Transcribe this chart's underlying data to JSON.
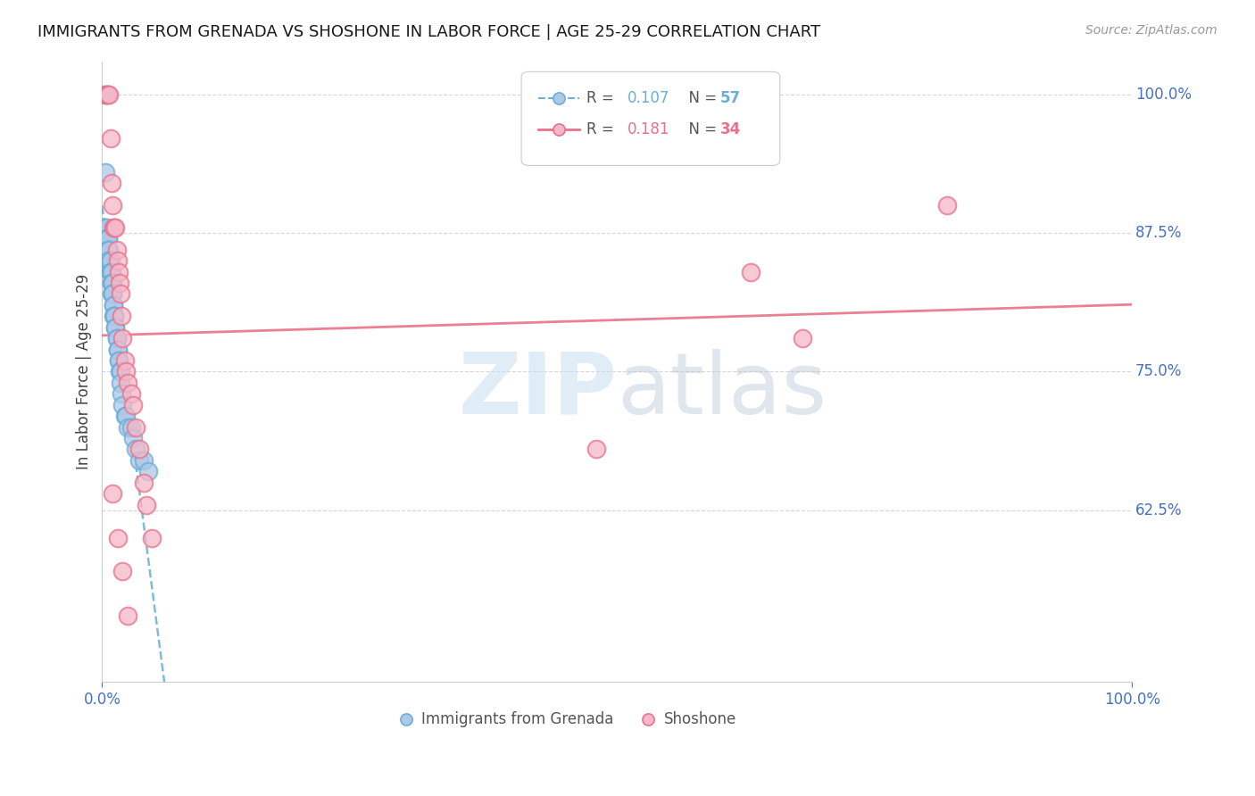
{
  "title": "IMMIGRANTS FROM GRENADA VS SHOSHONE IN LABOR FORCE | AGE 25-29 CORRELATION CHART",
  "source_text": "Source: ZipAtlas.com",
  "ylabel": "In Labor Force | Age 25-29",
  "xmin": 0.0,
  "xmax": 1.0,
  "ymin": 0.0,
  "ymax": 1.0,
  "ytick_values": [
    0.625,
    0.75,
    0.875,
    1.0
  ],
  "ytick_labels": [
    "62.5%",
    "75.0%",
    "87.5%",
    "100.0%"
  ],
  "xtick_labels": [
    "0.0%",
    "100.0%"
  ],
  "grenada_R": 0.107,
  "grenada_N": 57,
  "shoshone_R": 0.181,
  "shoshone_N": 34,
  "grenada_color": "#6baed6",
  "grenada_fill": "#aec8e8",
  "shoshone_color": "#e8728a",
  "shoshone_fill": "#f5b8c8",
  "grenada_x": [
    0.002,
    0.003,
    0.003,
    0.004,
    0.004,
    0.005,
    0.005,
    0.005,
    0.006,
    0.006,
    0.006,
    0.006,
    0.007,
    0.007,
    0.007,
    0.007,
    0.008,
    0.008,
    0.008,
    0.008,
    0.009,
    0.009,
    0.009,
    0.009,
    0.009,
    0.01,
    0.01,
    0.01,
    0.01,
    0.011,
    0.011,
    0.011,
    0.012,
    0.012,
    0.012,
    0.013,
    0.013,
    0.014,
    0.014,
    0.015,
    0.015,
    0.016,
    0.016,
    0.017,
    0.018,
    0.018,
    0.019,
    0.02,
    0.022,
    0.023,
    0.025,
    0.028,
    0.03,
    0.033,
    0.036,
    0.04,
    0.045
  ],
  "grenada_y": [
    1.0,
    0.93,
    0.88,
    1.0,
    0.88,
    0.87,
    0.87,
    0.86,
    0.87,
    0.87,
    0.86,
    0.86,
    0.86,
    0.85,
    0.85,
    0.85,
    0.85,
    0.84,
    0.84,
    0.84,
    0.84,
    0.83,
    0.83,
    0.83,
    0.82,
    0.83,
    0.82,
    0.82,
    0.82,
    0.81,
    0.81,
    0.8,
    0.8,
    0.8,
    0.8,
    0.79,
    0.79,
    0.78,
    0.78,
    0.77,
    0.77,
    0.76,
    0.76,
    0.75,
    0.75,
    0.74,
    0.73,
    0.72,
    0.71,
    0.71,
    0.7,
    0.7,
    0.69,
    0.68,
    0.67,
    0.67,
    0.66
  ],
  "shoshone_x": [
    0.004,
    0.006,
    0.007,
    0.008,
    0.009,
    0.01,
    0.011,
    0.012,
    0.013,
    0.014,
    0.015,
    0.016,
    0.017,
    0.018,
    0.019,
    0.02,
    0.022,
    0.023,
    0.025,
    0.028,
    0.03,
    0.033,
    0.036,
    0.04,
    0.043,
    0.048,
    0.48,
    0.63,
    0.68,
    0.82,
    0.01,
    0.015,
    0.02,
    0.025
  ],
  "shoshone_y": [
    1.0,
    1.0,
    1.0,
    0.96,
    0.92,
    0.9,
    0.88,
    0.88,
    0.88,
    0.86,
    0.85,
    0.84,
    0.83,
    0.82,
    0.8,
    0.78,
    0.76,
    0.75,
    0.74,
    0.73,
    0.72,
    0.7,
    0.68,
    0.65,
    0.63,
    0.6,
    0.68,
    0.84,
    0.78,
    0.9,
    0.64,
    0.6,
    0.57,
    0.53
  ],
  "watermark_zip": "ZIP",
  "watermark_atlas": "atlas",
  "background_color": "#ffffff",
  "grid_color": "#cccccc",
  "tick_color": "#4472c4",
  "source_color": "#999999"
}
